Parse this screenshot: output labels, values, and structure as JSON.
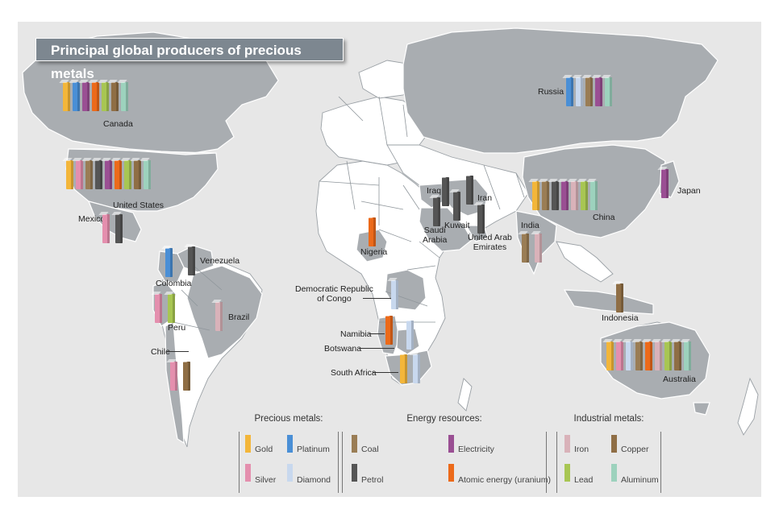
{
  "title": "Principal global producers of precious metals",
  "colors": {
    "gold": "#f3b63a",
    "platinum": "#4a8fd6",
    "silver": "#e48fae",
    "diamond": "#c8d8ee",
    "coal": "#9a7d55",
    "petrol": "#555555",
    "electricity": "#9a4f93",
    "uranium": "#ec6a1a",
    "iron": "#d9b2b9",
    "copper": "#8f6e45",
    "lead": "#a8c653",
    "aluminum": "#9dd2bd",
    "producer_land": "#a9adb1",
    "other_land": "#ffffff",
    "ocean": "#e7e7e7",
    "title_bg": "#7d8790"
  },
  "countries": [
    {
      "name": "Canada",
      "resources": [
        "gold",
        "platinum",
        "electricity",
        "uranium",
        "lead",
        "copper",
        "aluminum"
      ]
    },
    {
      "name": "United States",
      "resources": [
        "gold",
        "silver",
        "coal",
        "petrol",
        "electricity",
        "uranium",
        "lead",
        "copper",
        "aluminum"
      ]
    },
    {
      "name": "Mexico",
      "resources": [
        "silver",
        "petrol"
      ]
    },
    {
      "name": "Venezuela",
      "resources": [
        "petrol"
      ]
    },
    {
      "name": "Colombia",
      "resources": [
        "platinum"
      ]
    },
    {
      "name": "Peru",
      "resources": [
        "silver",
        "lead"
      ]
    },
    {
      "name": "Brazil",
      "resources": [
        "iron"
      ]
    },
    {
      "name": "Chile",
      "resources": [
        "silver",
        "copper"
      ]
    },
    {
      "name": "Nigeria",
      "resources": [
        "uranium"
      ]
    },
    {
      "name": "Democratic Republic of Congo",
      "resources": [
        "diamond"
      ]
    },
    {
      "name": "Namibia",
      "resources": [
        "uranium"
      ]
    },
    {
      "name": "Botswana",
      "resources": [
        "diamond"
      ]
    },
    {
      "name": "South Africa",
      "resources": [
        "gold",
        "diamond"
      ]
    },
    {
      "name": "Iraq",
      "resources": [
        "petrol"
      ]
    },
    {
      "name": "Iran",
      "resources": [
        "petrol"
      ]
    },
    {
      "name": "Saudi Arabia",
      "resources": [
        "petrol"
      ]
    },
    {
      "name": "Kuwait",
      "resources": [
        "petrol"
      ]
    },
    {
      "name": "United Arab Emirates",
      "resources": [
        "petrol"
      ]
    },
    {
      "name": "Russia",
      "resources": [
        "platinum",
        "diamond",
        "coal",
        "electricity",
        "aluminum"
      ]
    },
    {
      "name": "China",
      "resources": [
        "gold",
        "coal",
        "petrol",
        "electricity",
        "iron",
        "lead",
        "aluminum"
      ]
    },
    {
      "name": "India",
      "resources": [
        "coal",
        "iron"
      ]
    },
    {
      "name": "Japan",
      "resources": [
        "electricity"
      ]
    },
    {
      "name": "Indonesia",
      "resources": [
        "copper"
      ]
    },
    {
      "name": "Australia",
      "resources": [
        "gold",
        "silver",
        "diamond",
        "coal",
        "uranium",
        "iron",
        "lead",
        "copper",
        "aluminum"
      ]
    }
  ],
  "legend": {
    "precious": {
      "title": "Precious metals:",
      "items": [
        {
          "key": "gold",
          "label": "Gold"
        },
        {
          "key": "platinum",
          "label": "Platinum"
        },
        {
          "key": "silver",
          "label": "Silver"
        },
        {
          "key": "diamond",
          "label": "Diamond"
        }
      ]
    },
    "energy": {
      "title": "Energy resources:",
      "items": [
        {
          "key": "coal",
          "label": "Coal"
        },
        {
          "key": "electricity",
          "label": "Electricity"
        },
        {
          "key": "petrol",
          "label": "Petrol"
        },
        {
          "key": "uranium",
          "label": "Atomic energy (uranium)"
        }
      ]
    },
    "industrial": {
      "title": "Industrial metals:",
      "items": [
        {
          "key": "iron",
          "label": "Iron"
        },
        {
          "key": "copper",
          "label": "Copper"
        },
        {
          "key": "lead",
          "label": "Lead"
        },
        {
          "key": "aluminum",
          "label": "Aluminum"
        }
      ]
    }
  }
}
